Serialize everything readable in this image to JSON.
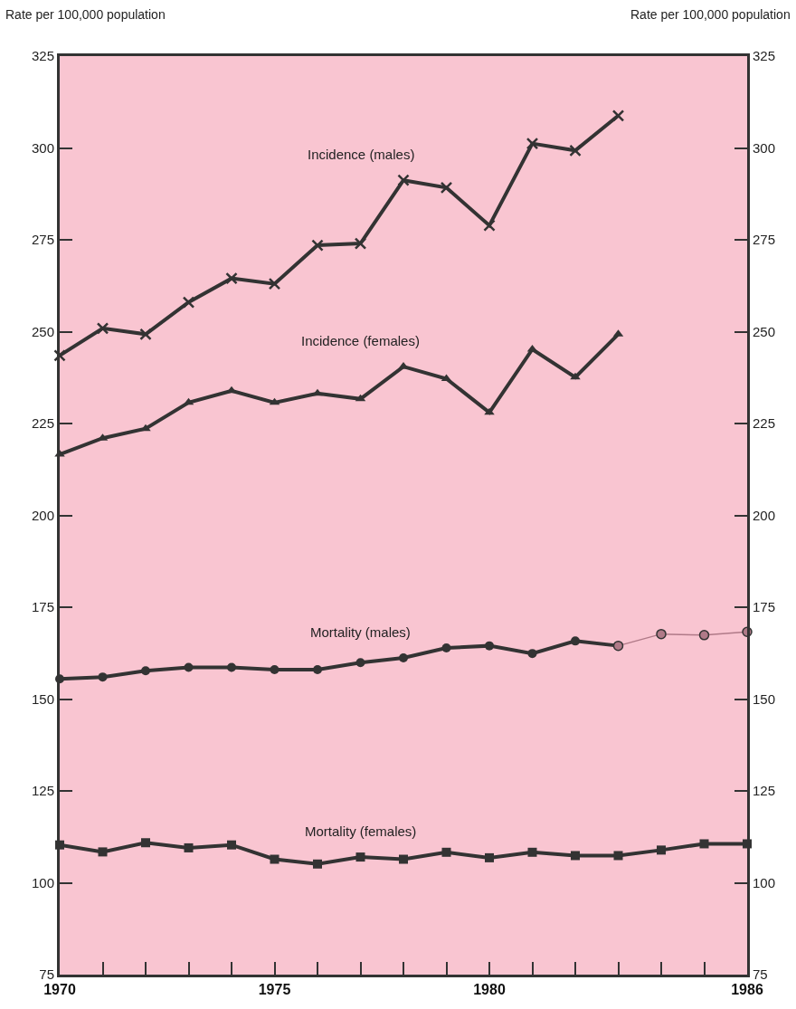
{
  "chart_data": {
    "type": "line",
    "ylabel": "Rate per 100,000 population",
    "y2label": "Rate per 100,000 population",
    "xlim": [
      1970,
      1986
    ],
    "xticks": [
      1970,
      {
        "value": 1971,
        "label": null
      },
      {
        "value": 1972,
        "label": null
      },
      {
        "value": 1973,
        "label": null
      },
      {
        "value": 1974,
        "label": null
      },
      1975,
      {
        "value": 1976,
        "label": null
      },
      {
        "value": 1977,
        "label": null
      },
      {
        "value": 1978,
        "label": null
      },
      {
        "value": 1979,
        "label": null
      },
      1980,
      {
        "value": 1981,
        "label": null
      },
      {
        "value": 1982,
        "label": null
      },
      {
        "value": 1983,
        "label": null
      },
      {
        "value": 1984,
        "label": null
      },
      {
        "value": 1985,
        "label": null
      },
      1986
    ],
    "ylim": [
      75,
      325
    ],
    "yticks": [
      75,
      100,
      125,
      150,
      175,
      200,
      225,
      250,
      275,
      300,
      325
    ],
    "y2lim": [
      75,
      325
    ],
    "y2ticks": [
      75,
      100,
      125,
      150,
      175,
      200,
      225,
      250,
      275,
      300,
      325
    ],
    "grid": false,
    "legend": false,
    "series": [
      {
        "name": "Incidence (males)",
        "color": "#333333",
        "marker": "cross",
        "x": [
          1970,
          1971,
          1972,
          1973,
          1974,
          1975,
          1976,
          1977,
          1978,
          1979,
          1980,
          1981,
          1982,
          1983
        ],
        "values": [
          243.5,
          250.9,
          249.3,
          258,
          264.5,
          263,
          273.5,
          274,
          291.2,
          289.2,
          278.9,
          301.2,
          299.3,
          308.8
        ]
      },
      {
        "name": "Incidence (females)",
        "color": "#333333",
        "marker": "triangle",
        "x": [
          1970,
          1971,
          1972,
          1973,
          1974,
          1975,
          1976,
          1977,
          1978,
          1979,
          1980,
          1981,
          1982,
          1983
        ],
        "values": [
          216.6,
          221,
          223.6,
          230.7,
          233.9,
          230.7,
          233.2,
          231.7,
          240.5,
          237.2,
          228,
          245.2,
          237.6,
          249.3
        ]
      },
      {
        "name": "Mortality (males)",
        "color": "#333333",
        "marker": "circle",
        "x": [
          1970,
          1971,
          1972,
          1973,
          1974,
          1975,
          1976,
          1977,
          1978,
          1979,
          1980,
          1981,
          1982,
          1983
        ],
        "values": [
          155.5,
          156,
          157.7,
          158.6,
          158.6,
          158,
          158,
          159.9,
          161.2,
          163.9,
          164.5,
          162.4,
          165.8,
          164.5
        ]
      },
      {
        "color": "#b07a88",
        "marker": "circle",
        "x": [
          1983,
          1984,
          1985,
          1986
        ],
        "values": [
          164.5,
          167.7,
          167.4,
          168.3
        ]
      },
      {
        "name": "Mortality (females)",
        "color": "#333333",
        "marker": "square",
        "x": [
          1970,
          1971,
          1972,
          1973,
          1974,
          1975,
          1976,
          1977,
          1978,
          1979,
          1980,
          1981,
          1982,
          1983,
          1984,
          1985,
          1986
        ],
        "values": [
          110.3,
          108.4,
          110.9,
          109.5,
          110.3,
          106.4,
          105.1,
          107,
          106.4,
          108.3,
          106.8,
          108.3,
          107.4,
          107.4,
          108.9,
          110.6,
          110.6
        ]
      }
    ]
  }
}
